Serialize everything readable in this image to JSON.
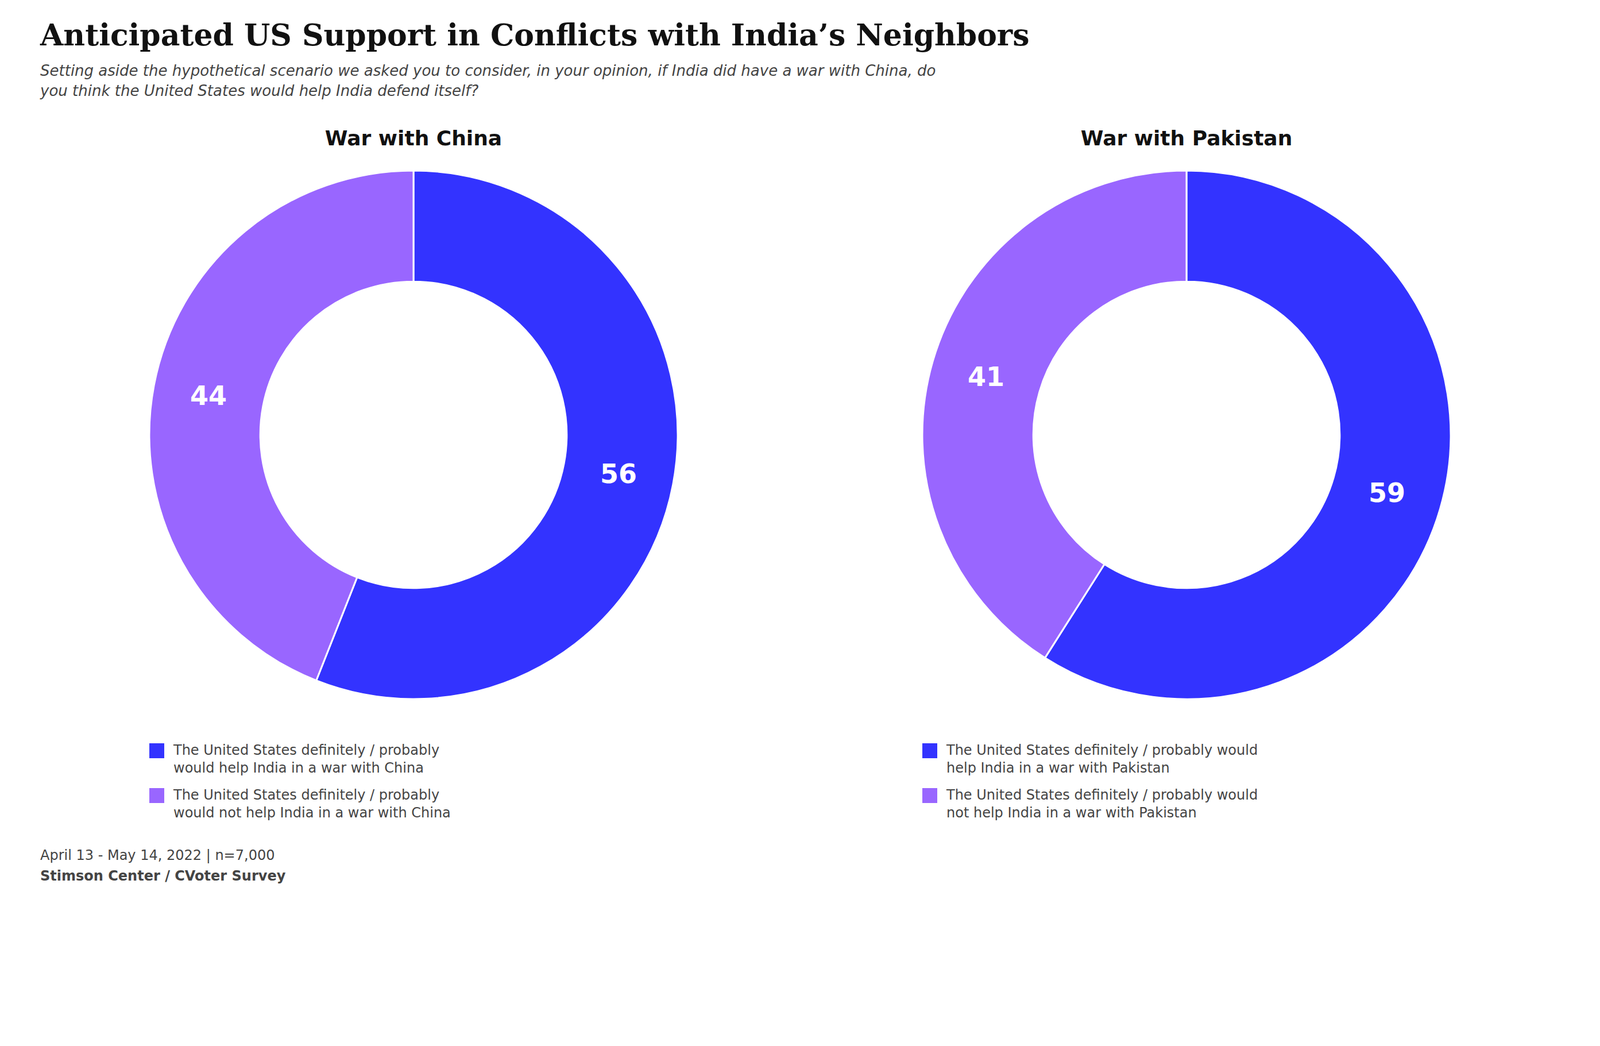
{
  "title": "Anticipated US Support in Conflicts with India’s Neighbors",
  "subtitle": "Setting aside the hypothetical scenario we asked you to consider, in your opinion, if India did have a war with China, do\nyou think the United States would help India defend itself?",
  "annotations": [
    "April 13 - May 14, 2022 | n=7,000",
    "Stimson Center / CVoter Survey"
  ],
  "chart_data": [
    {
      "type": "pie",
      "title": "War with China",
      "categories": [
        "The United States definitely / probably\nwould help India in a war with China",
        "The United States definitely / probably\nwould not help India in a war with China"
      ],
      "values": [
        56,
        44
      ],
      "colors": [
        "#3333ff",
        "#9966ff"
      ],
      "data_labels": true,
      "legend": "bottom"
    },
    {
      "type": "pie",
      "title": "War with Pakistan",
      "categories": [
        "The United States definitely / probably would\nhelp India in a war with Pakistan",
        "The United States definitely / probably would\nnot help India in a war with Pakistan"
      ],
      "values": [
        59,
        41
      ],
      "colors": [
        "#3333ff",
        "#9966ff"
      ],
      "data_labels": true,
      "legend": "bottom"
    }
  ]
}
